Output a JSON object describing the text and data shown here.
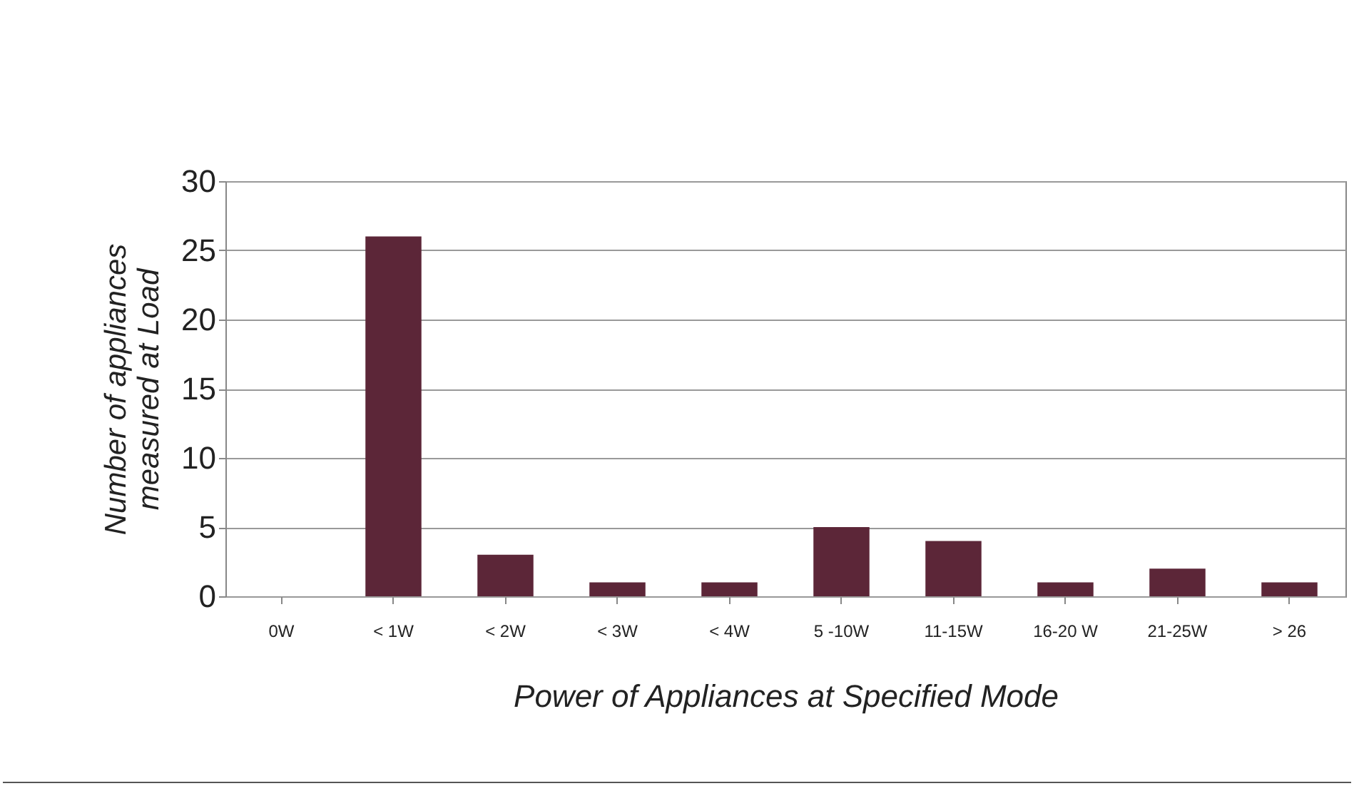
{
  "chart_data": {
    "type": "bar",
    "xlabel": "Power of Appliances at Specified Mode",
    "ylabel": "Number  of appliances\nmeasured at Load",
    "categories": [
      "0W",
      "< 1W",
      "< 2W",
      "< 3W",
      "< 4W",
      "5 -10W",
      "11-15W",
      "16-20 W",
      "21-25W",
      "> 26"
    ],
    "values": [
      0,
      26,
      3,
      1,
      1,
      5,
      4,
      1,
      2,
      1
    ],
    "color": "#5c2638",
    "ylim": [
      0,
      30
    ],
    "yticks": [
      0,
      5,
      10,
      15,
      20,
      25,
      30
    ],
    "grid": "y"
  }
}
